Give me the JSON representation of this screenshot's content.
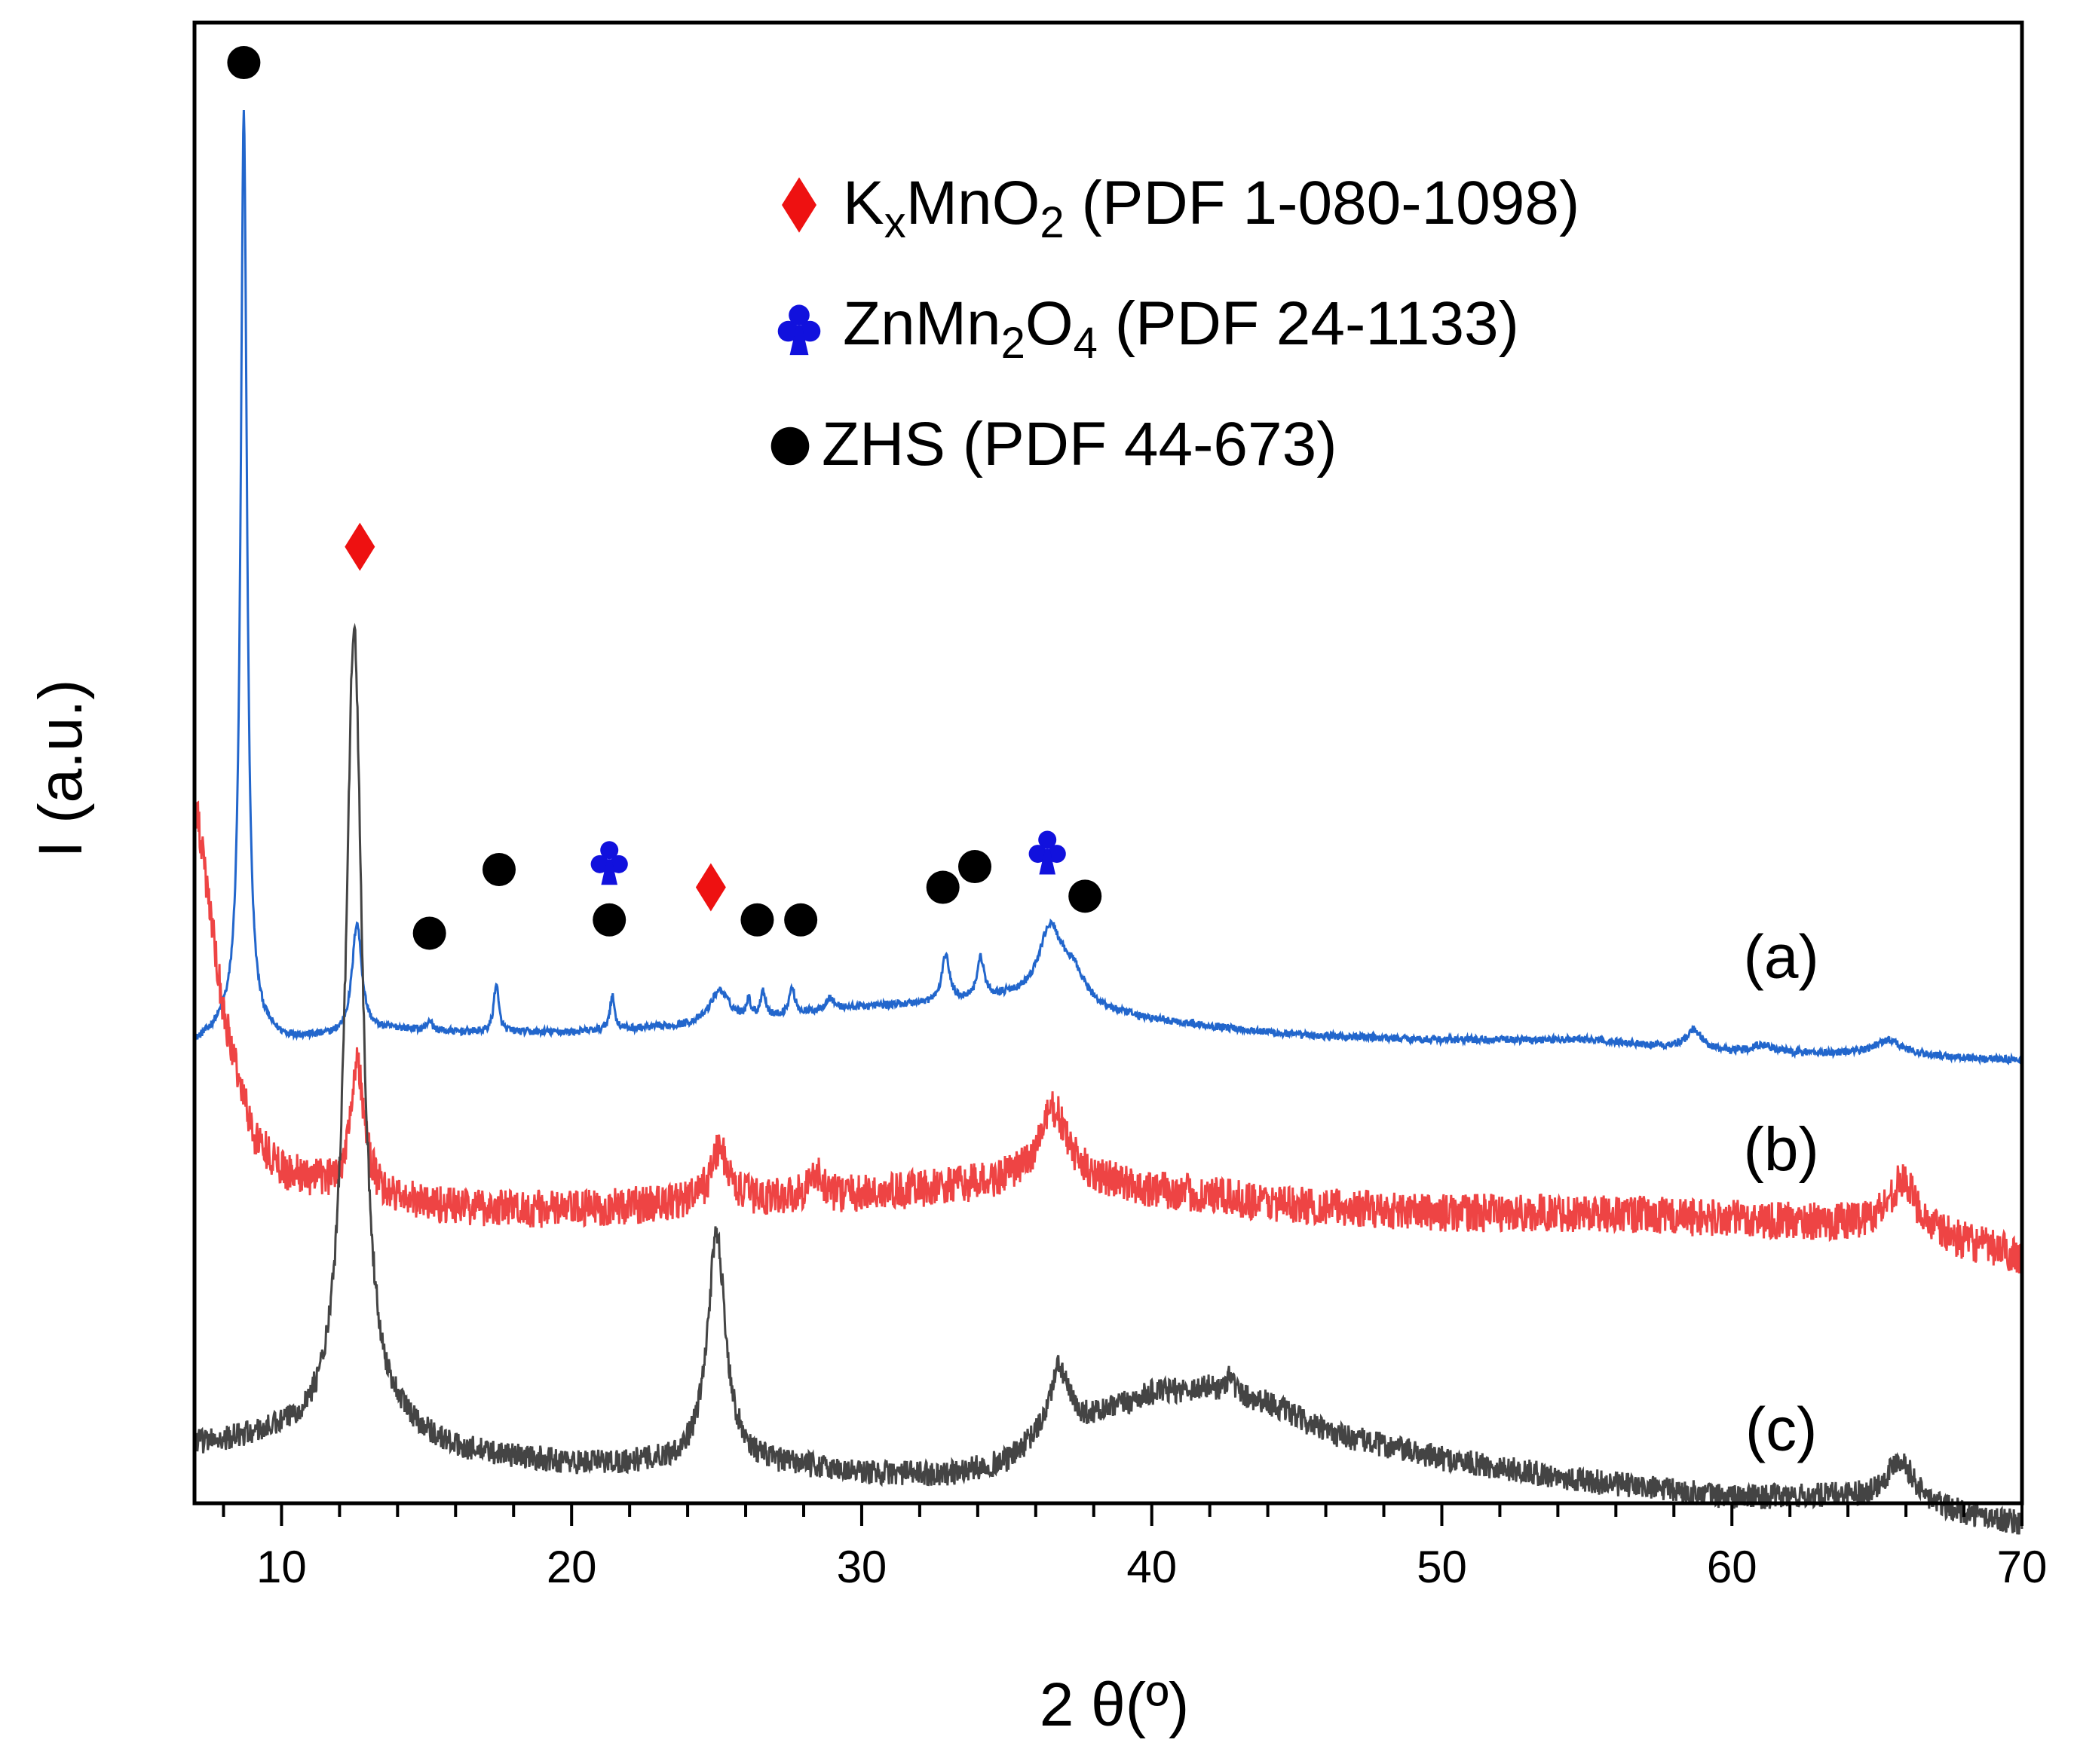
{
  "chart_data": {
    "type": "line",
    "title": "",
    "xlabel": "2 θ(º)",
    "ylabel": "I (a.u.)",
    "xlim": [
      7,
      70
    ],
    "ylim": [
      0,
      100
    ],
    "xticks": [
      10,
      20,
      30,
      40,
      50,
      60,
      70
    ],
    "yticks": [],
    "grid": false,
    "legend": {
      "position": "top-right",
      "entries": [
        {
          "marker": "diamond",
          "color": "#ee1111",
          "label_prefix": "K",
          "label_sub1": "x",
          "label_mid": "MnO",
          "label_sub2": "2",
          "label_suffix": " (PDF 1-080-1098)"
        },
        {
          "marker": "club",
          "color": "#1111dd",
          "label_prefix": "ZnMn",
          "label_sub1": "2",
          "label_mid": "O",
          "label_sub2": "4",
          "label_suffix": " (PDF 24-1133)"
        },
        {
          "marker": "circle",
          "color": "#000000",
          "label": "ZHS (PDF 44-673)"
        }
      ]
    },
    "series": [
      {
        "name": "(a)",
        "color": "#2266cc",
        "noise": 0.25,
        "baseline": [
          [
            7,
            31
          ],
          [
            8,
            32
          ],
          [
            9,
            31.8
          ],
          [
            10,
            31.3
          ],
          [
            12,
            31.5
          ],
          [
            14,
            32
          ],
          [
            16,
            31.8
          ],
          [
            20,
            31.8
          ],
          [
            25,
            32.3
          ],
          [
            30,
            33.5
          ],
          [
            35,
            34
          ],
          [
            40,
            32.6
          ],
          [
            45,
            31.6
          ],
          [
            50,
            31.3
          ],
          [
            55,
            31.3
          ],
          [
            60,
            30.5
          ],
          [
            65,
            30.3
          ],
          [
            70,
            29.9
          ]
        ],
        "peaks": [
          {
            "x": 8.7,
            "h": 62,
            "w": 0.13
          },
          {
            "x": 12.6,
            "h": 7.5,
            "w": 0.2
          },
          {
            "x": 15.1,
            "h": 0.7,
            "w": 0.1
          },
          {
            "x": 17.4,
            "h": 3.3,
            "w": 0.1
          },
          {
            "x": 21.4,
            "h": 2.3,
            "w": 0.1
          },
          {
            "x": 25.1,
            "h": 2.3,
            "w": 0.4
          },
          {
            "x": 26.1,
            "h": 1.2,
            "w": 0.1
          },
          {
            "x": 26.6,
            "h": 1.8,
            "w": 0.1
          },
          {
            "x": 27.6,
            "h": 1.8,
            "w": 0.12
          },
          {
            "x": 28.9,
            "h": 0.8,
            "w": 0.2
          },
          {
            "x": 32.9,
            "h": 3.2,
            "w": 0.15
          },
          {
            "x": 34.1,
            "h": 2.7,
            "w": 0.15
          },
          {
            "x": 36.5,
            "h": 5.0,
            "w": 0.5
          },
          {
            "x": 37.3,
            "h": 2.0,
            "w": 0.5
          },
          {
            "x": 58.7,
            "h": 1.3,
            "w": 0.3
          },
          {
            "x": 61.0,
            "h": 0.5,
            "w": 0.4
          },
          {
            "x": 65.4,
            "h": 1.0,
            "w": 0.6
          }
        ]
      },
      {
        "name": "(b)",
        "color": "#ee4444",
        "noise": 1.3,
        "baseline": [
          [
            7,
            48
          ],
          [
            8,
            33
          ],
          [
            9,
            25
          ],
          [
            10,
            22.5
          ],
          [
            12,
            21
          ],
          [
            14,
            20.4
          ],
          [
            16,
            20
          ],
          [
            20,
            19.8
          ],
          [
            25,
            20.4
          ],
          [
            30,
            20.8
          ],
          [
            35,
            21.6
          ],
          [
            38,
            21.6
          ],
          [
            40,
            21.1
          ],
          [
            45,
            20.1
          ],
          [
            50,
            19.6
          ],
          [
            55,
            19.6
          ],
          [
            60,
            19.2
          ],
          [
            65,
            18.7
          ],
          [
            70,
            16.7
          ]
        ],
        "peaks": [
          {
            "x": 12.6,
            "h": 9.0,
            "w": 0.3
          },
          {
            "x": 25.1,
            "h": 3.5,
            "w": 0.35
          },
          {
            "x": 28.4,
            "h": 1.5,
            "w": 0.3
          },
          {
            "x": 36.6,
            "h": 5.0,
            "w": 0.6
          },
          {
            "x": 65.9,
            "h": 3.4,
            "w": 0.6
          }
        ]
      },
      {
        "name": "(c)",
        "color": "#444444",
        "noise": 0.85,
        "baseline": [
          [
            7,
            3.9
          ],
          [
            10,
            4.5
          ],
          [
            12,
            5.0
          ],
          [
            14,
            4.8
          ],
          [
            16,
            3.4
          ],
          [
            20,
            2.6
          ],
          [
            23,
            2.6
          ],
          [
            25,
            2.6
          ],
          [
            28,
            2.4
          ],
          [
            30,
            2.0
          ],
          [
            33,
            1.9
          ],
          [
            35,
            2.7
          ],
          [
            36,
            4.0
          ],
          [
            40,
            7.4
          ],
          [
            42,
            7.8
          ],
          [
            44,
            6.8
          ],
          [
            46,
            4.8
          ],
          [
            50,
            3.0
          ],
          [
            55,
            1.5
          ],
          [
            60,
            0.4
          ],
          [
            64,
            0.4
          ],
          [
            70,
            -1.4
          ]
        ],
        "peaks": [
          {
            "x": 12.5,
            "h": 54,
            "w": 0.35
          },
          {
            "x": 25.0,
            "h": 15.5,
            "w": 0.38
          },
          {
            "x": 36.8,
            "h": 4.5,
            "w": 0.4
          },
          {
            "x": 42.7,
            "h": 1.5,
            "w": 0.12
          },
          {
            "x": 65.8,
            "h": 3.1,
            "w": 0.6
          }
        ]
      }
    ],
    "curve_labels": [
      {
        "text": "(a)",
        "x": 61.7,
        "y": 35.5
      },
      {
        "text": "(b)",
        "x": 61.7,
        "y": 22.5
      },
      {
        "text": "(c)",
        "x": 61.7,
        "y": 3.6
      }
    ],
    "annotations": [
      {
        "marker": "circle",
        "color": "#000000",
        "x": 8.7,
        "y": 97.3
      },
      {
        "marker": "diamond",
        "color": "#ee1111",
        "x": 12.7,
        "y": 64.6
      },
      {
        "marker": "circle",
        "color": "#000000",
        "x": 15.1,
        "y": 38.5
      },
      {
        "marker": "circle",
        "color": "#000000",
        "x": 17.5,
        "y": 42.8
      },
      {
        "marker": "circle",
        "color": "#000000",
        "x": 21.3,
        "y": 39.4
      },
      {
        "marker": "club",
        "color": "#1111dd",
        "x": 21.3,
        "y": 43.5
      },
      {
        "marker": "diamond",
        "color": "#ee1111",
        "x": 24.8,
        "y": 41.6
      },
      {
        "marker": "circle",
        "color": "#000000",
        "x": 26.4,
        "y": 39.4
      },
      {
        "marker": "circle",
        "color": "#000000",
        "x": 27.9,
        "y": 39.4
      },
      {
        "marker": "circle",
        "color": "#000000",
        "x": 32.8,
        "y": 41.6
      },
      {
        "marker": "circle",
        "color": "#000000",
        "x": 33.9,
        "y": 43.0
      },
      {
        "marker": "club",
        "color": "#1111dd",
        "x": 36.4,
        "y": 44.2
      },
      {
        "marker": "circle",
        "color": "#000000",
        "x": 37.7,
        "y": 41.0
      }
    ]
  }
}
